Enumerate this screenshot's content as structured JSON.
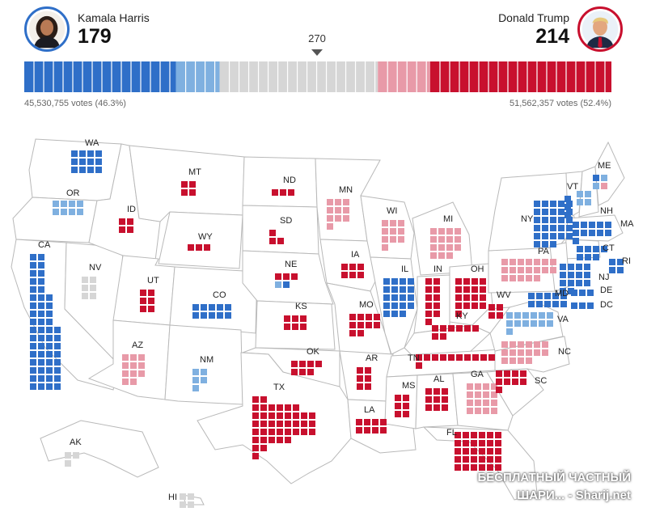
{
  "header": {
    "dem": {
      "name": "Kamala Harris",
      "ev": "179",
      "votes": "45,530,755 votes (46.3%)",
      "color": "#2f6fc8"
    },
    "rep": {
      "name": "Donald Trump",
      "ev": "214",
      "votes": "51,562,357 votes (52.4%)",
      "color": "#c8102e"
    },
    "threshold_label": "270"
  },
  "colors": {
    "safe_dem": "#2f6fc8",
    "lean_dem": "#7fb0e0",
    "tossup": "#d6d6d6",
    "lean_rep": "#e89aa8",
    "safe_rep": "#c8102e",
    "state_fill": "#ffffff",
    "state_border": "#b9b9b9"
  },
  "bar": {
    "total": 538,
    "segments": [
      {
        "status": "safe_dem",
        "votes": 139
      },
      {
        "status": "lean_dem",
        "votes": 40
      },
      {
        "status": "tossup",
        "votes": 145
      },
      {
        "status": "lean_rep",
        "votes": 48
      },
      {
        "status": "safe_rep",
        "votes": 166
      }
    ]
  },
  "states": [
    {
      "abbr": "WA",
      "votes": 12,
      "status": "safe_dem"
    },
    {
      "abbr": "OR",
      "votes": 8,
      "status": "lean_dem"
    },
    {
      "abbr": "CA",
      "votes": 54,
      "status": "safe_dem"
    },
    {
      "abbr": "NV",
      "votes": 6,
      "status": "tossup"
    },
    {
      "abbr": "ID",
      "votes": 4,
      "status": "safe_rep"
    },
    {
      "abbr": "MT",
      "votes": 4,
      "status": "safe_rep"
    },
    {
      "abbr": "WY",
      "votes": 3,
      "status": "safe_rep"
    },
    {
      "abbr": "UT",
      "votes": 6,
      "status": "safe_rep"
    },
    {
      "abbr": "CO",
      "votes": 10,
      "status": "safe_dem"
    },
    {
      "abbr": "AZ",
      "votes": 11,
      "status": "lean_rep"
    },
    {
      "abbr": "NM",
      "votes": 5,
      "status": "lean_dem"
    },
    {
      "abbr": "ND",
      "votes": 3,
      "status": "safe_rep"
    },
    {
      "abbr": "SD",
      "votes": 3,
      "status": "safe_rep"
    },
    {
      "abbr": "NE",
      "votes": 5,
      "status": "mixed"
    },
    {
      "abbr": "KS",
      "votes": 6,
      "status": "safe_rep"
    },
    {
      "abbr": "OK",
      "votes": 7,
      "status": "safe_rep"
    },
    {
      "abbr": "TX",
      "votes": 40,
      "status": "safe_rep"
    },
    {
      "abbr": "MN",
      "votes": 10,
      "status": "lean_rep"
    },
    {
      "abbr": "IA",
      "votes": 6,
      "status": "safe_rep"
    },
    {
      "abbr": "MO",
      "votes": 10,
      "status": "safe_rep"
    },
    {
      "abbr": "AR",
      "votes": 6,
      "status": "safe_rep"
    },
    {
      "abbr": "LA",
      "votes": 8,
      "status": "safe_rep"
    },
    {
      "abbr": "WI",
      "votes": 10,
      "status": "lean_rep"
    },
    {
      "abbr": "IL",
      "votes": 19,
      "status": "safe_dem"
    },
    {
      "abbr": "MI",
      "votes": 15,
      "status": "lean_rep"
    },
    {
      "abbr": "IN",
      "votes": 11,
      "status": "safe_rep"
    },
    {
      "abbr": "OH",
      "votes": 17,
      "status": "safe_rep"
    },
    {
      "abbr": "KY",
      "votes": 8,
      "status": "safe_rep"
    },
    {
      "abbr": "TN",
      "votes": 11,
      "status": "safe_rep"
    },
    {
      "abbr": "MS",
      "votes": 6,
      "status": "safe_rep"
    },
    {
      "abbr": "AL",
      "votes": 9,
      "status": "safe_rep"
    },
    {
      "abbr": "GA",
      "votes": 16,
      "status": "lean_rep"
    },
    {
      "abbr": "FL",
      "votes": 30,
      "status": "safe_rep"
    },
    {
      "abbr": "SC",
      "votes": 9,
      "status": "safe_rep"
    },
    {
      "abbr": "NC",
      "votes": 16,
      "status": "lean_rep"
    },
    {
      "abbr": "VA",
      "votes": 13,
      "status": "lean_dem"
    },
    {
      "abbr": "WV",
      "votes": 4,
      "status": "safe_rep"
    },
    {
      "abbr": "PA",
      "votes": 19,
      "status": "lean_rep"
    },
    {
      "abbr": "NY",
      "votes": 28,
      "status": "safe_dem"
    },
    {
      "abbr": "VT",
      "votes": 3,
      "status": "safe_dem"
    },
    {
      "abbr": "NH",
      "votes": 4,
      "status": "lean_dem"
    },
    {
      "abbr": "ME",
      "votes": 4,
      "status": "mixed"
    },
    {
      "abbr": "MA",
      "votes": 11,
      "status": "safe_dem"
    },
    {
      "abbr": "RI",
      "votes": 4,
      "status": "safe_dem"
    },
    {
      "abbr": "CT",
      "votes": 7,
      "status": "safe_dem"
    },
    {
      "abbr": "NJ",
      "votes": 14,
      "status": "safe_dem"
    },
    {
      "abbr": "DE",
      "votes": 3,
      "status": "safe_dem"
    },
    {
      "abbr": "MD",
      "votes": 10,
      "status": "safe_dem"
    },
    {
      "abbr": "DC",
      "votes": 3,
      "status": "safe_dem"
    },
    {
      "abbr": "AK",
      "votes": 3,
      "status": "tossup"
    },
    {
      "abbr": "HI",
      "votes": 4,
      "status": "tossup"
    }
  ],
  "watermark": {
    "line1": "БЕСПЛАТНЫЙ ЧАСТНЫЙ",
    "line2": "ШАРИ... - Sharij.net"
  }
}
